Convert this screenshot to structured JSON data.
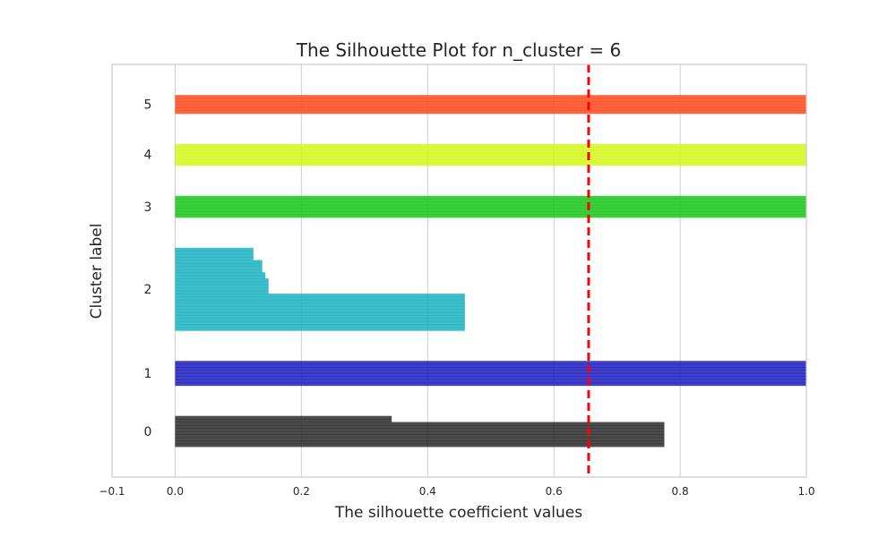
{
  "chart_data": {
    "type": "bar",
    "title": "The Silhouette Plot for n_cluster = 6",
    "xlabel": "The silhouette coefficient values",
    "ylabel": "Cluster label",
    "xlim": [
      -0.1,
      1.0
    ],
    "xticks": [
      "−0.1",
      "0.0",
      "0.2",
      "0.4",
      "0.6",
      "0.8",
      "1.0"
    ],
    "xtick_values": [
      -0.1,
      0.0,
      0.2,
      0.4,
      0.6,
      0.8,
      1.0
    ],
    "grid": true,
    "average_silhouette": 0.655,
    "average_line_color": "#ff0000",
    "clusters": [
      {
        "label": "0",
        "color": "#2d2d2d",
        "values": [
          0.775,
          0.775,
          0.775,
          0.775,
          0.775,
          0.775,
          0.775,
          0.775,
          0.343,
          0.343
        ]
      },
      {
        "label": "1",
        "color": "#1f1fbf",
        "values": [
          1.0,
          1.0,
          1.0,
          1.0,
          1.0,
          1.0,
          1.0,
          1.0
        ]
      },
      {
        "label": "2",
        "color": "#1cb1c2",
        "values": [
          0.459,
          0.459,
          0.459,
          0.459,
          0.459,
          0.459,
          0.459,
          0.459,
          0.459,
          0.459,
          0.459,
          0.459,
          0.148,
          0.148,
          0.148,
          0.148,
          0.148,
          0.143,
          0.143,
          0.138,
          0.138,
          0.138,
          0.138,
          0.124,
          0.124,
          0.124,
          0.124
        ]
      },
      {
        "label": "3",
        "color": "#1bc51b",
        "values": [
          1.0,
          1.0,
          1.0,
          1.0,
          1.0,
          1.0,
          1.0
        ]
      },
      {
        "label": "4",
        "color": "#d4f71c",
        "values": [
          1.0,
          1.0,
          1.0,
          1.0,
          1.0,
          1.0,
          1.0
        ]
      },
      {
        "label": "5",
        "color": "#ff4a1c",
        "values": [
          1.0,
          1.0,
          1.0,
          1.0,
          1.0,
          1.0
        ]
      }
    ]
  }
}
